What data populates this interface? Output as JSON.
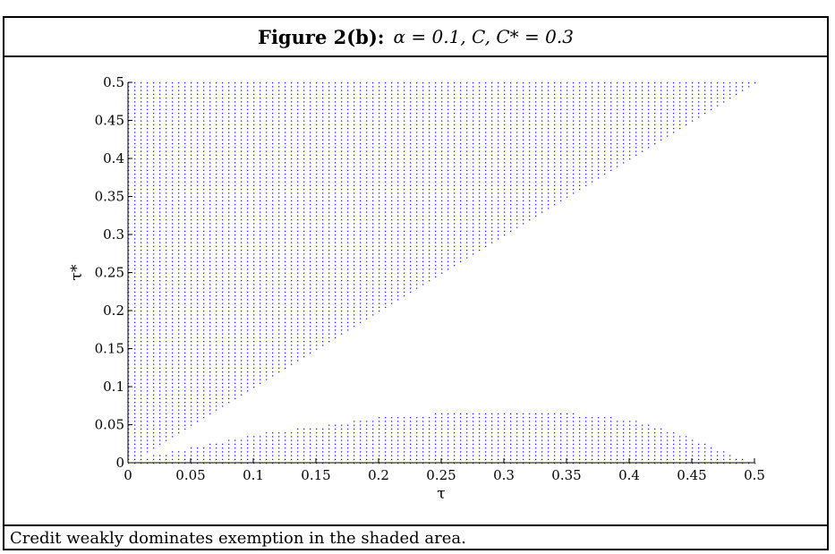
{
  "figure": {
    "figure_label": "Figure 2(b):",
    "equation": "α = 0.1, C, C* = 0.3",
    "caption": "Credit weakly dominates exemption in the shaded area."
  },
  "colors": {
    "points": "#1f1fe0",
    "axis": "#000000"
  },
  "chart_data": {
    "type": "scatter",
    "title": "Figure 2(b): α = 0.1, C, C* = 0.3",
    "xlabel": "τ",
    "ylabel": "τ*",
    "xlim": [
      0,
      0.5
    ],
    "ylim": [
      0,
      0.5
    ],
    "x_ticks": [
      "0",
      "0.05",
      "0.1",
      "0.15",
      "0.2",
      "0.25",
      "0.3",
      "0.35",
      "0.4",
      "0.45",
      "0.5"
    ],
    "y_ticks": [
      "0",
      "0.05",
      "0.1",
      "0.15",
      "0.2",
      "0.25",
      "0.3",
      "0.35",
      "0.4",
      "0.45",
      "0.5"
    ],
    "grid": false,
    "regions": [
      {
        "name": "upper",
        "description_rule": "tau_star >= tau",
        "x_range": [
          0,
          0.5
        ],
        "y_range": [
          0,
          0.5
        ]
      },
      {
        "name": "lower",
        "x": [
          0,
          0.05,
          0.1,
          0.15,
          0.2,
          0.25,
          0.3,
          0.35,
          0.4,
          0.45,
          0.5
        ],
        "y_upper": [
          0.005,
          0.02,
          0.038,
          0.048,
          0.06,
          0.066,
          0.066,
          0.066,
          0.058,
          0.033,
          0.0
        ]
      }
    ],
    "grid_step": 0.005
  }
}
